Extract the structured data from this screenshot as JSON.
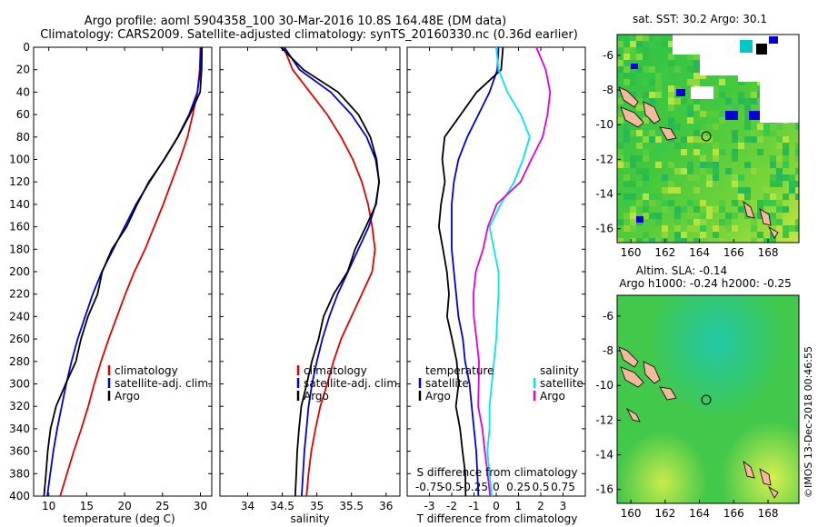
{
  "title": {
    "line1": "Argo profile: aoml 5904358_100 30-Mar-2016 10.8S 164.48E (DM data)",
    "line2": "Climatology: CARS2009. Satellite-adjusted climatology: synTS_20160330.nc (0.36d earlier)"
  },
  "colors": {
    "climatology": "#e00000",
    "satellite": "#0000d8",
    "argo": "#000000",
    "sat_salinity": "#00e8e8",
    "argo_salinity": "#e000e0",
    "land": "#f4b89c"
  },
  "chart_data": [
    {
      "type": "line",
      "xlabel": "temperature (deg C)",
      "ylabel": "",
      "xlim": [
        8,
        31.5
      ],
      "ylim": [
        400,
        0
      ],
      "xticks": [
        "10",
        "15",
        "20",
        "25",
        "30"
      ],
      "xtick_values": [
        10,
        15,
        20,
        25,
        30
      ],
      "yticks": [
        "0",
        "20",
        "40",
        "60",
        "80",
        "100",
        "120",
        "140",
        "160",
        "180",
        "200",
        "220",
        "240",
        "260",
        "280",
        "300",
        "320",
        "340",
        "360",
        "380",
        "400"
      ],
      "yvalues": [
        0,
        20,
        40,
        60,
        80,
        100,
        120,
        140,
        160,
        180,
        200,
        220,
        240,
        260,
        280,
        300,
        320,
        340,
        360,
        380,
        400
      ],
      "legend": [
        "climatology",
        "satellite-adj. clim.",
        "Argo"
      ],
      "series": [
        {
          "name": "climatology",
          "color": "#e00000",
          "x": [
            30,
            29.9,
            29.6,
            29,
            28.3,
            27.3,
            26.2,
            25.1,
            23.9,
            22.7,
            21.3,
            20.1,
            19,
            17.9,
            16.9,
            16,
            15.2,
            14.3,
            13.3,
            12.4,
            11.5
          ]
        },
        {
          "name": "satellite-adj. clim.",
          "color": "#0000d8",
          "x": [
            30.1,
            30,
            29.6,
            28.5,
            27,
            25.2,
            23.3,
            21.5,
            20,
            18.5,
            17,
            15.8,
            14.8,
            13.8,
            13,
            12.3,
            11.7,
            11.1,
            10.6,
            10.2,
            9.8
          ]
        },
        {
          "name": "Argo",
          "color": "#000000",
          "x": [
            30.2,
            30.1,
            29.9,
            28.6,
            27.1,
            25.3,
            23.2,
            21.6,
            20.2,
            18.3,
            17.1,
            16.5,
            15.2,
            14.2,
            13.5,
            12.2,
            11,
            10.3,
            9.9,
            9.6,
            9.3
          ]
        }
      ]
    },
    {
      "type": "line",
      "xlabel": "salinity",
      "xlim": [
        33.6,
        36.2
      ],
      "ylim": [
        400,
        0
      ],
      "xticks": [
        "34",
        "34.5",
        "35",
        "35.5",
        "36"
      ],
      "xtick_values": [
        34,
        34.5,
        35,
        35.5,
        36
      ],
      "yvalues": [
        0,
        20,
        40,
        60,
        80,
        100,
        120,
        140,
        160,
        180,
        200,
        220,
        240,
        260,
        280,
        300,
        320,
        340,
        360,
        380,
        400
      ],
      "legend": [
        "climatology",
        "satellite-adj. clim.",
        "Argo"
      ],
      "series": [
        {
          "name": "climatology",
          "color": "#e00000",
          "x": [
            34.52,
            34.65,
            34.9,
            35.15,
            35.35,
            35.52,
            35.65,
            35.74,
            35.8,
            35.84,
            35.8,
            35.65,
            35.5,
            35.35,
            35.24,
            35.15,
            35.05,
            34.98,
            34.92,
            34.88,
            34.85
          ]
        },
        {
          "name": "satellite-adj. clim.",
          "color": "#0000d8",
          "x": [
            34.53,
            34.75,
            35.2,
            35.5,
            35.72,
            35.85,
            35.9,
            35.85,
            35.75,
            35.6,
            35.45,
            35.3,
            35.18,
            35.08,
            35,
            34.93,
            34.88,
            34.85,
            34.82,
            34.8,
            34.78
          ]
        },
        {
          "name": "Argo",
          "color": "#000000",
          "x": [
            34.48,
            34.8,
            35.3,
            35.6,
            35.78,
            35.87,
            35.9,
            35.85,
            35.7,
            35.55,
            35.45,
            35.25,
            35.1,
            35.02,
            34.92,
            34.85,
            34.78,
            34.75,
            34.72,
            34.7,
            34.68
          ]
        }
      ]
    },
    {
      "type": "line",
      "xlabel": "T difference from climatology",
      "secondary_xlabel": "S difference from climatology",
      "xlim": [
        -4,
        4
      ],
      "ylim": [
        400,
        0
      ],
      "xticks": [
        "-3",
        "-2",
        "-1",
        "0",
        "1",
        "2",
        "3"
      ],
      "xtick_values": [
        -3,
        -2,
        -1,
        0,
        1,
        2,
        3
      ],
      "secondary_xticks": [
        "-0.75",
        "-0.5",
        "-0.25",
        "0",
        "0.25",
        "0.5",
        "0.75"
      ],
      "yvalues": [
        0,
        20,
        40,
        60,
        80,
        100,
        120,
        140,
        160,
        180,
        200,
        220,
        240,
        260,
        280,
        300,
        320,
        340,
        360,
        380,
        400
      ],
      "legend_left_title": "temperature",
      "legend_left": [
        "satellite",
        "Argo"
      ],
      "legend_right_title": "salinity",
      "legend_right": [
        "satellite",
        "Argo"
      ],
      "series": [
        {
          "name": "temperature satellite",
          "color": "#0000d8",
          "x": [
            0.1,
            0.05,
            -0.3,
            -0.8,
            -1.3,
            -1.7,
            -1.9,
            -2,
            -2,
            -2,
            -1.9,
            -1.8,
            -1.7,
            -1.5,
            -1.4,
            -1.2,
            -1.1,
            -1,
            -0.9,
            -0.85,
            -0.8
          ]
        },
        {
          "name": "temperature Argo",
          "color": "#000000",
          "x": [
            0.3,
            0.2,
            -0.9,
            -1.6,
            -2.3,
            -2.4,
            -2.3,
            -2.5,
            -2.6,
            -2.4,
            -2.2,
            -2.1,
            -2.2,
            -2,
            -1.8,
            -1.7,
            -1.8,
            -1.6,
            -1.5,
            -1.4,
            -1.4
          ]
        },
        {
          "name": "salinity satellite",
          "color": "#00e8e8",
          "x": [
            0,
            0.1,
            0.5,
            1.1,
            1.5,
            1.2,
            0.8,
            0.2,
            -0.3,
            -0.1,
            0.1,
            0.1,
            0.05,
            0,
            -0.1,
            -0.2,
            -0.3,
            -0.3,
            -0.4,
            -0.3,
            -0.2
          ]
        },
        {
          "name": "salinity Argo",
          "color": "#e000e0",
          "x": [
            1.8,
            2.2,
            2.4,
            2.3,
            2.1,
            1.6,
            1.1,
            0,
            -0.4,
            -0.6,
            -0.9,
            -1,
            -1,
            -0.9,
            -0.8,
            -0.8,
            -0.8,
            -0.6,
            -0.5,
            -0.4,
            -0.3
          ]
        }
      ]
    },
    {
      "type": "heatmap",
      "title": "sat. SST: 30.2 Argo: 30.1",
      "xlim": [
        159.2,
        169.8
      ],
      "ylim": [
        -16.8,
        -4.8
      ],
      "xticks": [
        "160",
        "162",
        "164",
        "166",
        "168"
      ],
      "xtick_values": [
        160,
        162,
        164,
        166,
        168
      ],
      "yticks": [
        "-6",
        "-8",
        "-10",
        "-12",
        "-14",
        "-16"
      ],
      "ytick_values": [
        -6,
        -8,
        -10,
        -12,
        -14,
        -16
      ],
      "argo_position": [
        164.48,
        -10.8
      ]
    },
    {
      "type": "heatmap",
      "title_line1": "Altim. SLA: -0.14",
      "title_line2": "Argo h1000: -0.24 h2000: -0.25",
      "xlim": [
        159.2,
        169.8
      ],
      "ylim": [
        -16.8,
        -4.8
      ],
      "xticks": [
        "160",
        "162",
        "164",
        "166",
        "168"
      ],
      "xtick_values": [
        160,
        162,
        164,
        166,
        168
      ],
      "yticks": [
        "-6",
        "-8",
        "-10",
        "-12",
        "-14",
        "-16"
      ],
      "ytick_values": [
        -6,
        -8,
        -10,
        -12,
        -14,
        -16
      ],
      "argo_position": [
        164.48,
        -10.8
      ]
    }
  ],
  "footer": {
    "stamp": "©IMOS 13-Dec-2018 00:46:55"
  }
}
